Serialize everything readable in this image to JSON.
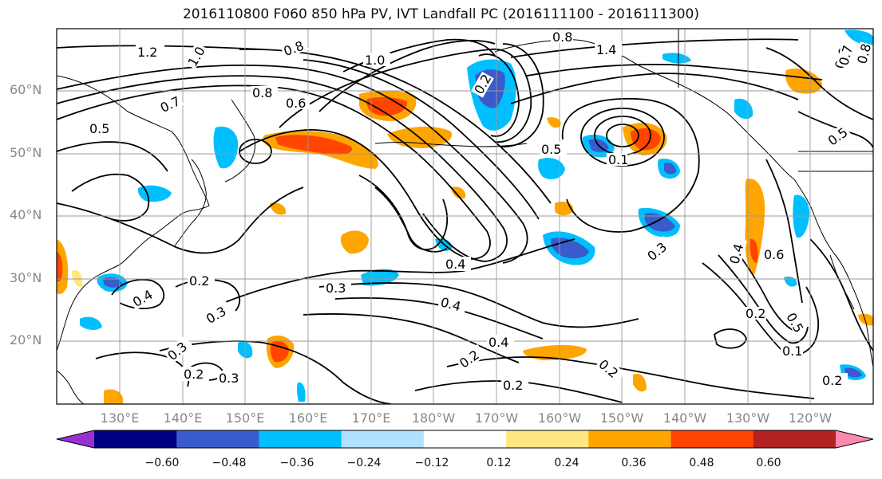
{
  "title": "2016110800 F060 850 hPa PV, IVT Landfall PC (2016111100 - 2016111300)",
  "lat_labels": [
    "60°N",
    "50°N",
    "40°N",
    "30°N",
    "20°N"
  ],
  "lon_labels": [
    "130°E",
    "140°E",
    "150°E",
    "160°E",
    "170°E",
    "180°W",
    "170°W",
    "160°W",
    "150°W",
    "140°W",
    "130°W",
    "120°W"
  ],
  "colorbar": {
    "tick_labels": [
      "−0.60",
      "−0.48",
      "−0.36",
      "−0.24",
      "−0.12",
      "0.12",
      "0.24",
      "0.36",
      "0.48",
      "0.60"
    ],
    "colors": [
      "#9b30d0",
      "#000080",
      "#3a5bcb",
      "#00bfff",
      "#b0e2ff",
      "#ffffff",
      "#ffe680",
      "#ffa500",
      "#ff4500",
      "#b22222",
      "#ff88b0"
    ]
  },
  "contour_labels": [
    "1.2",
    "1.0",
    "0.8",
    "1.0",
    "0.8",
    "0.6",
    "0.7",
    "0.5",
    "0.2",
    "1.4",
    "0.8",
    "0.5",
    "0.1",
    "0.5",
    "0.4",
    "0.3",
    "0.4",
    "0.4",
    "0.2",
    "0.2",
    "0.3",
    "0.3",
    "0.4",
    "0.2",
    "0.3",
    "0.2",
    "0.3",
    "0.2",
    "0.2",
    "0.4",
    "0.6",
    "0.2",
    "0.5",
    "0.6",
    "0.7",
    "0.8",
    "0.1"
  ]
}
